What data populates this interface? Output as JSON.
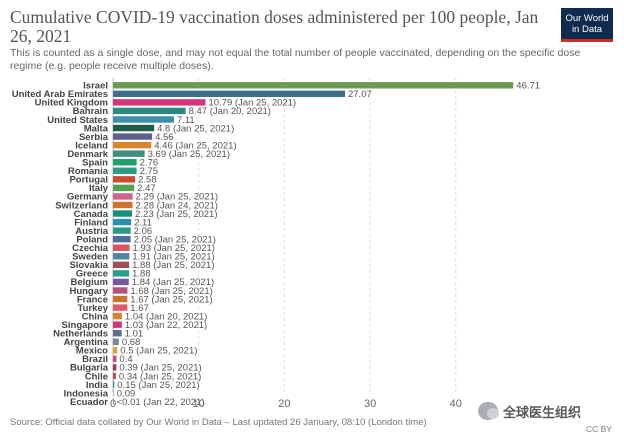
{
  "title": "Cumulative COVID-19 vaccination doses administered per 100 people, Jan 26, 2021",
  "subtitle": "This is counted as a single dose, and may not equal the total number of people vaccinated, depending on the specific dose regime (e.g. people receive multiple doses).",
  "logo": {
    "line1": "Our World",
    "line2": "in Data"
  },
  "footer": "Source: Official data collated by Our World in Data – Last updated 26 January, 08:10 (London time)",
  "license": "CC BY",
  "watermark": "全球医生组织",
  "chart_data": {
    "type": "bar",
    "orientation": "horizontal",
    "title": "Cumulative COVID-19 vaccination doses administered per 100 people, Jan 26, 2021",
    "xlim": [
      0,
      47
    ],
    "x_ticks": [
      "0",
      "10",
      "20",
      "30",
      "40"
    ],
    "grid": "vertical dashed",
    "categories": [
      "Israel",
      "United Arab Emirates",
      "United Kingdom",
      "Bahrain",
      "United States",
      "Malta",
      "Serbia",
      "Iceland",
      "Denmark",
      "Spain",
      "Romania",
      "Portugal",
      "Italy",
      "Germany",
      "Switzerland",
      "Canada",
      "Finland",
      "Austria",
      "Poland",
      "Czechia",
      "Sweden",
      "Slovakia",
      "Greece",
      "Belgium",
      "Hungary",
      "France",
      "Turkey",
      "China",
      "Singapore",
      "Netherlands",
      "Argentina",
      "Mexico",
      "Brazil",
      "Bulgaria",
      "Chile",
      "India",
      "Indonesia",
      "Ecuador"
    ],
    "values": [
      46.71,
      27.07,
      10.79,
      8.47,
      7.11,
      4.8,
      4.56,
      4.46,
      3.69,
      2.76,
      2.75,
      2.58,
      2.47,
      2.29,
      2.28,
      2.23,
      2.11,
      2.06,
      2.05,
      1.93,
      1.91,
      1.88,
      1.88,
      1.84,
      1.68,
      1.67,
      1.67,
      1.04,
      1.03,
      1.01,
      0.68,
      0.5,
      0.4,
      0.39,
      0.34,
      0.15,
      0.09,
      0.005
    ],
    "labels": [
      "46.71",
      "27.07",
      "10.79 (Jan 25, 2021)",
      "8.47 (Jan 20, 2021)",
      "7.11",
      "4.8 (Jan 25, 2021)",
      "4.56",
      "4.46 (Jan 25, 2021)",
      "3.69 (Jan 25, 2021)",
      "2.76",
      "2.75",
      "2.58",
      "2.47",
      "2.29 (Jan 25, 2021)",
      "2.28 (Jan 24, 2021)",
      "2.23 (Jan 25, 2021)",
      "2.11",
      "2.06",
      "2.05 (Jan 25, 2021)",
      "1.93 (Jan 25, 2021)",
      "1.91 (Jan 25, 2021)",
      "1.88 (Jan 25, 2021)",
      "1.88",
      "1.84 (Jan 25, 2021)",
      "1.68 (Jan 25, 2021)",
      "1.67 (Jan 25, 2021)",
      "1.67",
      "1.04 (Jan 20, 2021)",
      "1.03 (Jan 22, 2021)",
      "1.01",
      "0.68",
      "0.5 (Jan 25, 2021)",
      "0.4",
      "0.39 (Jan 25, 2021)",
      "0.34 (Jan 25, 2021)",
      "0.15 (Jan 25, 2021)",
      "0.09",
      "<0.01 (Jan 22, 2021)"
    ],
    "colors": [
      "#6d9a55",
      "#3e6f89",
      "#d6337a",
      "#2a8a82",
      "#3a8fa6",
      "#1e5b48",
      "#5d5f8e",
      "#d8852c",
      "#3f8f7e",
      "#1fa06a",
      "#2b9a86",
      "#c84b32",
      "#52a24f",
      "#d0628f",
      "#d0722a",
      "#1a8f78",
      "#2a90ad",
      "#2b9a86",
      "#4d6d9c",
      "#d9545d",
      "#4b86a6",
      "#a24c55",
      "#2aa08a",
      "#7657a0",
      "#b6527c",
      "#c8742a",
      "#e0576a",
      "#d6832c",
      "#d6337a",
      "#5a6f8c",
      "#7f8692",
      "#d7a43a",
      "#c8467a",
      "#a63a4f",
      "#b04a5e",
      "#2a8aa0",
      "#999999",
      "#666666"
    ]
  }
}
